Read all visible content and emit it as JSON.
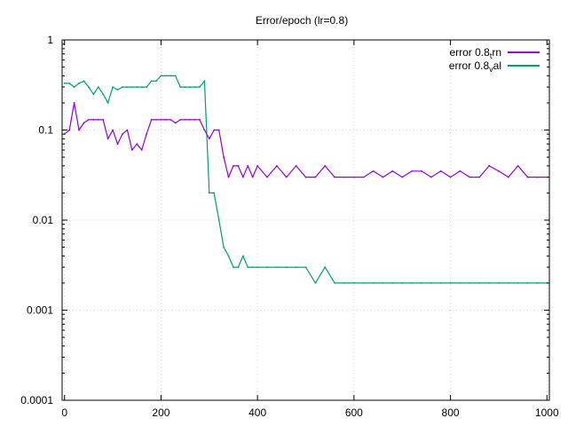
{
  "chart_data": {
    "type": "line",
    "title": "Error/epoch (lr=0.8)",
    "xlabel": "",
    "ylabel": "",
    "xlim": [
      -5,
      1005
    ],
    "ylim": [
      0.0001,
      1
    ],
    "yscale": "log",
    "grid": true,
    "legend_position": "top-right",
    "x_ticks": [
      0,
      200,
      400,
      600,
      800,
      1000
    ],
    "x_tick_labels": [
      "0",
      "200",
      "400",
      "600",
      "800",
      "1000"
    ],
    "y_ticks": [
      0.0001,
      0.001,
      0.01,
      0.1,
      1
    ],
    "y_tick_labels": [
      "0.0001",
      "0.001",
      "0.01",
      "0.1",
      "1"
    ],
    "series": [
      {
        "name": "error 0.8_trn",
        "legend_label": {
          "base": "error 0.8",
          "sub": "t",
          "rest": "rn"
        },
        "color": "#9400d3",
        "x": [
          0,
          10,
          20,
          30,
          40,
          50,
          60,
          70,
          80,
          90,
          100,
          110,
          120,
          130,
          140,
          150,
          160,
          170,
          180,
          190,
          200,
          210,
          220,
          230,
          240,
          250,
          260,
          270,
          280,
          290,
          300,
          310,
          320,
          330,
          340,
          350,
          360,
          370,
          380,
          390,
          400,
          420,
          440,
          460,
          480,
          500,
          520,
          540,
          560,
          580,
          600,
          620,
          640,
          660,
          680,
          700,
          720,
          740,
          760,
          780,
          800,
          820,
          840,
          860,
          880,
          900,
          920,
          940,
          960,
          980,
          1000
        ],
        "y": [
          0.09,
          0.1,
          0.2,
          0.1,
          0.12,
          0.13,
          0.13,
          0.13,
          0.13,
          0.08,
          0.1,
          0.07,
          0.09,
          0.1,
          0.06,
          0.07,
          0.06,
          0.09,
          0.13,
          0.13,
          0.13,
          0.13,
          0.13,
          0.12,
          0.13,
          0.13,
          0.13,
          0.13,
          0.13,
          0.1,
          0.08,
          0.1,
          0.1,
          0.05,
          0.03,
          0.04,
          0.04,
          0.03,
          0.04,
          0.03,
          0.04,
          0.03,
          0.04,
          0.03,
          0.04,
          0.03,
          0.03,
          0.04,
          0.03,
          0.03,
          0.03,
          0.03,
          0.035,
          0.03,
          0.035,
          0.03,
          0.035,
          0.035,
          0.03,
          0.035,
          0.03,
          0.035,
          0.03,
          0.03,
          0.04,
          0.035,
          0.03,
          0.04,
          0.03,
          0.03,
          0.03
        ]
      },
      {
        "name": "error 0.8_val",
        "legend_label": {
          "base": "error 0.8",
          "sub": "v",
          "rest": "al"
        },
        "color": "#009e73",
        "x": [
          0,
          10,
          20,
          30,
          40,
          50,
          60,
          70,
          80,
          90,
          100,
          110,
          120,
          130,
          140,
          150,
          160,
          170,
          180,
          190,
          200,
          210,
          220,
          230,
          240,
          250,
          260,
          270,
          280,
          290,
          300,
          310,
          320,
          330,
          340,
          350,
          360,
          370,
          380,
          390,
          400,
          420,
          440,
          460,
          480,
          500,
          520,
          540,
          560,
          580,
          600,
          620,
          640,
          660,
          680,
          700,
          720,
          740,
          760,
          780,
          800,
          820,
          840,
          860,
          880,
          900,
          920,
          940,
          960,
          980,
          1000
        ],
        "y": [
          0.33,
          0.33,
          0.3,
          0.33,
          0.35,
          0.3,
          0.25,
          0.3,
          0.25,
          0.2,
          0.3,
          0.28,
          0.3,
          0.3,
          0.3,
          0.3,
          0.3,
          0.3,
          0.35,
          0.35,
          0.4,
          0.4,
          0.4,
          0.4,
          0.3,
          0.3,
          0.3,
          0.3,
          0.3,
          0.35,
          0.02,
          0.02,
          0.01,
          0.005,
          0.004,
          0.003,
          0.003,
          0.004,
          0.003,
          0.003,
          0.003,
          0.003,
          0.003,
          0.003,
          0.003,
          0.003,
          0.002,
          0.003,
          0.002,
          0.002,
          0.002,
          0.002,
          0.002,
          0.002,
          0.002,
          0.002,
          0.002,
          0.002,
          0.002,
          0.002,
          0.002,
          0.002,
          0.002,
          0.002,
          0.002,
          0.002,
          0.002,
          0.002,
          0.002,
          0.002,
          0.002
        ]
      }
    ]
  }
}
